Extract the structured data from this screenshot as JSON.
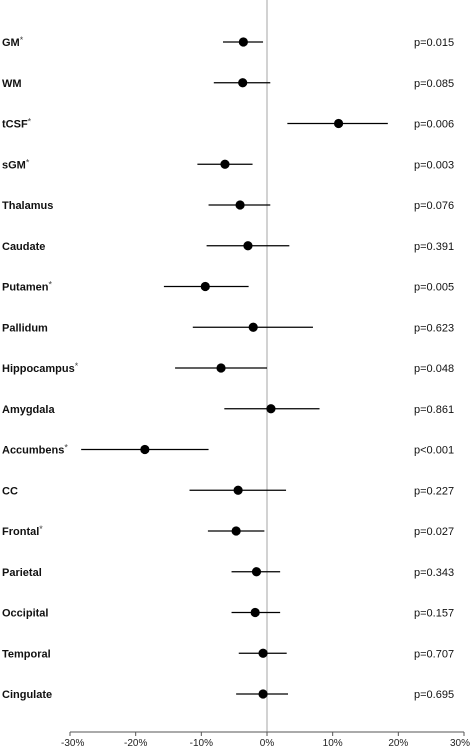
{
  "chart_data": {
    "type": "scatter",
    "title": "",
    "xlabel": "",
    "ylabel": "",
    "xlim": [
      -30,
      30
    ],
    "x_ticks": [
      -30,
      -20,
      -10,
      0,
      10,
      20,
      30
    ],
    "x_tick_labels": [
      "-30%",
      "-20%",
      "-10%",
      "0%",
      "10%",
      "20%",
      "30%"
    ],
    "reference_line": 0,
    "grid": false,
    "legend": "none",
    "rows": [
      {
        "label": "GM",
        "star": "*",
        "estimate": -3.6,
        "lower": -6.7,
        "upper": -0.6,
        "p": "p=0.015"
      },
      {
        "label": "WM",
        "star": "",
        "estimate": -3.7,
        "lower": -8.1,
        "upper": 0.5,
        "p": "p=0.085"
      },
      {
        "label": "tCSF",
        "star": "*",
        "estimate": 10.9,
        "lower": 3.1,
        "upper": 18.4,
        "p": "p=0.006"
      },
      {
        "label": "sGM",
        "star": "*",
        "estimate": -6.4,
        "lower": -10.6,
        "upper": -2.2,
        "p": "p=0.003"
      },
      {
        "label": "Thalamus",
        "star": "",
        "estimate": -4.1,
        "lower": -8.9,
        "upper": 0.5,
        "p": "p=0.076"
      },
      {
        "label": "Caudate",
        "star": "",
        "estimate": -2.9,
        "lower": -9.2,
        "upper": 3.4,
        "p": "p=0.391"
      },
      {
        "label": "Putamen",
        "star": "*",
        "estimate": -9.4,
        "lower": -15.7,
        "upper": -2.8,
        "p": "p=0.005"
      },
      {
        "label": "Pallidum",
        "star": "",
        "estimate": -2.1,
        "lower": -11.3,
        "upper": 7.0,
        "p": "p=0.623"
      },
      {
        "label": "Hippocampus",
        "star": "*",
        "estimate": -7.0,
        "lower": -14.0,
        "upper": 0.0,
        "p": "p=0.048"
      },
      {
        "label": "Amygdala",
        "star": "",
        "estimate": 0.6,
        "lower": -6.5,
        "upper": 8.0,
        "p": "p=0.861"
      },
      {
        "label": "Accumbens",
        "star": "*",
        "estimate": -18.6,
        "lower": -28.3,
        "upper": -8.9,
        "p": "p<0.001"
      },
      {
        "label": "CC",
        "star": "",
        "estimate": -4.4,
        "lower": -11.8,
        "upper": 2.9,
        "p": "p=0.227"
      },
      {
        "label": "Frontal",
        "star": "*",
        "estimate": -4.7,
        "lower": -9.0,
        "upper": -0.4,
        "p": "p=0.027"
      },
      {
        "label": "Parietal",
        "star": "",
        "estimate": -1.6,
        "lower": -5.4,
        "upper": 2.0,
        "p": "p=0.343"
      },
      {
        "label": "Occipital",
        "star": "",
        "estimate": -1.8,
        "lower": -5.4,
        "upper": 2.0,
        "p": "p=0.157"
      },
      {
        "label": "Temporal",
        "star": "",
        "estimate": -0.6,
        "lower": -4.3,
        "upper": 3.0,
        "p": "p=0.707"
      },
      {
        "label": "Cingulate",
        "star": "",
        "estimate": -0.6,
        "lower": -4.7,
        "upper": 3.2,
        "p": "p=0.695"
      }
    ],
    "colors": {
      "marker": "#000000",
      "whisker": "#000000",
      "reference_line": "#b5b5b5",
      "axis": "#555555"
    }
  }
}
